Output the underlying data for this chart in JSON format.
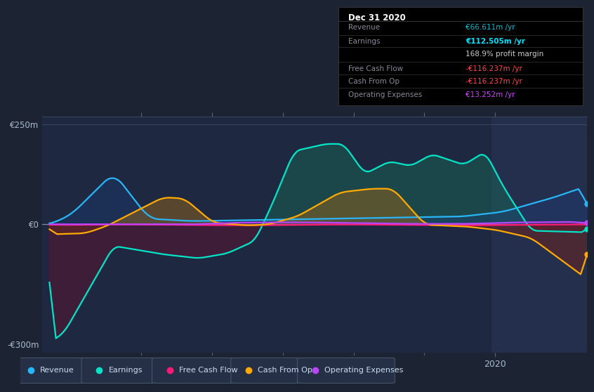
{
  "background_color": "#1c2333",
  "plot_bg_color": "#1e2840",
  "xlim": [
    2013.6,
    2021.3
  ],
  "ylim": [
    -320,
    270
  ],
  "yticks": [
    -300,
    0,
    250
  ],
  "ytick_labels": [
    "-€300m",
    "€0",
    "€250m"
  ],
  "xticks": [
    2015,
    2016,
    2017,
    2018,
    2019,
    2020
  ],
  "highlight_start": 2019.95,
  "series": {
    "revenue": {
      "color": "#29b6f6",
      "label": "Revenue"
    },
    "earnings": {
      "color": "#00e5c8",
      "label": "Earnings"
    },
    "free_cash_flow": {
      "color": "#ff1a75",
      "label": "Free Cash Flow"
    },
    "cash_from_op": {
      "color": "#ffaa00",
      "label": "Cash From Op"
    },
    "operating_expenses": {
      "color": "#bb44ff",
      "label": "Operating Expenses"
    }
  },
  "legend_items": [
    {
      "label": "Revenue",
      "color": "#29b6f6"
    },
    {
      "label": "Earnings",
      "color": "#00e5c8"
    },
    {
      "label": "Free Cash Flow",
      "color": "#ff1a75"
    },
    {
      "label": "Cash From Op",
      "color": "#ffaa00"
    },
    {
      "label": "Operating Expenses",
      "color": "#bb44ff"
    }
  ],
  "info_box": {
    "date": "Dec 31 2020",
    "rows": [
      {
        "label": "Revenue",
        "value": "€66.611m /yr",
        "value_color": "#00bcd4"
      },
      {
        "label": "Earnings",
        "value": "€112.505m /yr",
        "value_color": "#00e5ff",
        "bold": true
      },
      {
        "label": "",
        "value": "168.9% profit margin",
        "value_color": "#cccccc"
      },
      {
        "label": "Free Cash Flow",
        "value": "-€116.237m /yr",
        "value_color": "#ff4444"
      },
      {
        "label": "Cash From Op",
        "value": "-€116.237m /yr",
        "value_color": "#ff4444"
      },
      {
        "label": "Operating Expenses",
        "value": "€13.252m /yr",
        "value_color": "#cc44ff"
      }
    ]
  }
}
